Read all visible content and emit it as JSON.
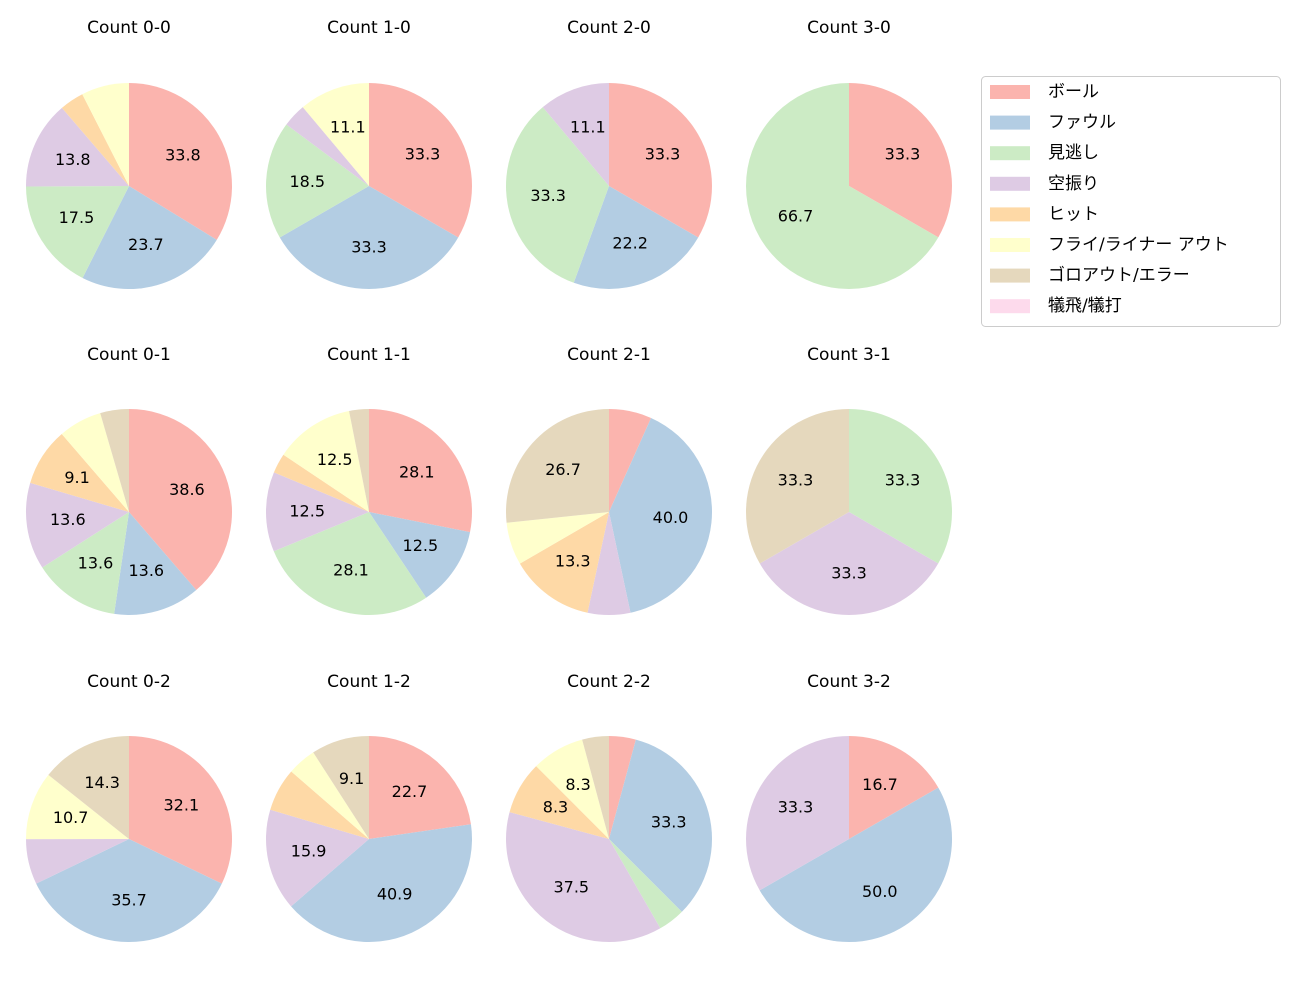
{
  "chart_data": [
    {
      "type": "pie",
      "title": "Count 0-0",
      "categories": [
        "ボール",
        "ファウル",
        "見逃し",
        "空振り",
        "ヒット",
        "フライ/ライナー アウト",
        "ゴロアウト/エラー",
        "犠飛/犠打"
      ],
      "colors": [
        "#fbb4ae",
        "#b3cde3",
        "#ccebc5",
        "#decbe4",
        "#fed9a6",
        "#ffffcc",
        "#e5d8bd",
        "#fddaec"
      ],
      "values": [
        33.8,
        23.7,
        17.5,
        13.8,
        3.8,
        7.5,
        0,
        0
      ],
      "value_labels": [
        "33.8",
        "23.7",
        "17.5",
        "13.8",
        null,
        null,
        null,
        null
      ]
    },
    {
      "type": "pie",
      "title": "Count 1-0",
      "categories": [
        "ボール",
        "ファウル",
        "見逃し",
        "空振り",
        "ヒット",
        "フライ/ライナー アウト",
        "ゴロアウト/エラー",
        "犠飛/犠打"
      ],
      "colors": [
        "#fbb4ae",
        "#b3cde3",
        "#ccebc5",
        "#decbe4",
        "#fed9a6",
        "#ffffcc",
        "#e5d8bd",
        "#fddaec"
      ],
      "values": [
        33.3,
        33.3,
        18.5,
        3.7,
        0,
        11.1,
        0,
        0
      ],
      "value_labels": [
        "33.3",
        "33.3",
        "18.5",
        null,
        null,
        "11.1",
        null,
        null
      ]
    },
    {
      "type": "pie",
      "title": "Count 2-0",
      "categories": [
        "ボール",
        "ファウル",
        "見逃し",
        "空振り",
        "ヒット",
        "フライ/ライナー アウト",
        "ゴロアウト/エラー",
        "犠飛/犠打"
      ],
      "colors": [
        "#fbb4ae",
        "#b3cde3",
        "#ccebc5",
        "#decbe4",
        "#fed9a6",
        "#ffffcc",
        "#e5d8bd",
        "#fddaec"
      ],
      "values": [
        33.3,
        22.2,
        33.3,
        11.1,
        0,
        0,
        0,
        0
      ],
      "value_labels": [
        "33.3",
        "22.2",
        "33.3",
        "11.1",
        null,
        null,
        null,
        null
      ]
    },
    {
      "type": "pie",
      "title": "Count 3-0",
      "categories": [
        "ボール",
        "ファウル",
        "見逃し",
        "空振り",
        "ヒット",
        "フライ/ライナー アウト",
        "ゴロアウト/エラー",
        "犠飛/犠打"
      ],
      "colors": [
        "#fbb4ae",
        "#b3cde3",
        "#ccebc5",
        "#decbe4",
        "#fed9a6",
        "#ffffcc",
        "#e5d8bd",
        "#fddaec"
      ],
      "values": [
        33.3,
        0,
        66.7,
        0,
        0,
        0,
        0,
        0
      ],
      "value_labels": [
        "33.3",
        null,
        "66.7",
        null,
        null,
        null,
        null,
        null
      ]
    },
    {
      "type": "pie",
      "title": "Count 0-1",
      "categories": [
        "ボール",
        "ファウル",
        "見逃し",
        "空振り",
        "ヒット",
        "フライ/ライナー アウト",
        "ゴロアウト/エラー",
        "犠飛/犠打"
      ],
      "colors": [
        "#fbb4ae",
        "#b3cde3",
        "#ccebc5",
        "#decbe4",
        "#fed9a6",
        "#ffffcc",
        "#e5d8bd",
        "#fddaec"
      ],
      "values": [
        38.6,
        13.6,
        13.6,
        13.6,
        9.1,
        6.8,
        4.5,
        0
      ],
      "value_labels": [
        "38.6",
        "13.6",
        "13.6",
        "13.6",
        "9.1",
        null,
        null,
        null
      ]
    },
    {
      "type": "pie",
      "title": "Count 1-1",
      "categories": [
        "ボール",
        "ファウル",
        "見逃し",
        "空振り",
        "ヒット",
        "フライ/ライナー アウト",
        "ゴロアウト/エラー",
        "犠飛/犠打"
      ],
      "colors": [
        "#fbb4ae",
        "#b3cde3",
        "#ccebc5",
        "#decbe4",
        "#fed9a6",
        "#ffffcc",
        "#e5d8bd",
        "#fddaec"
      ],
      "values": [
        28.1,
        12.5,
        28.1,
        12.5,
        3.1,
        12.5,
        3.1,
        0
      ],
      "value_labels": [
        "28.1",
        "12.5",
        "28.1",
        "12.5",
        null,
        "12.5",
        null,
        null
      ]
    },
    {
      "type": "pie",
      "title": "Count 2-1",
      "categories": [
        "ボール",
        "ファウル",
        "見逃し",
        "空振り",
        "ヒット",
        "フライ/ライナー アウト",
        "ゴロアウト/エラー",
        "犠飛/犠打"
      ],
      "colors": [
        "#fbb4ae",
        "#b3cde3",
        "#ccebc5",
        "#decbe4",
        "#fed9a6",
        "#ffffcc",
        "#e5d8bd",
        "#fddaec"
      ],
      "values": [
        6.7,
        40.0,
        0,
        6.7,
        13.3,
        6.7,
        26.7,
        0
      ],
      "value_labels": [
        null,
        "40.0",
        null,
        null,
        "13.3",
        null,
        "26.7",
        null
      ]
    },
    {
      "type": "pie",
      "title": "Count 3-1",
      "categories": [
        "ボール",
        "ファウル",
        "見逃し",
        "空振り",
        "ヒット",
        "フライ/ライナー アウト",
        "ゴロアウト/エラー",
        "犠飛/犠打"
      ],
      "colors": [
        "#fbb4ae",
        "#b3cde3",
        "#ccebc5",
        "#decbe4",
        "#fed9a6",
        "#ffffcc",
        "#e5d8bd",
        "#fddaec"
      ],
      "values": [
        0,
        0,
        33.3,
        33.3,
        0,
        0,
        33.3,
        0
      ],
      "value_labels": [
        null,
        null,
        "33.3",
        "33.3",
        null,
        null,
        "33.3",
        null
      ]
    },
    {
      "type": "pie",
      "title": "Count 0-2",
      "categories": [
        "ボール",
        "ファウル",
        "見逃し",
        "空振り",
        "ヒット",
        "フライ/ライナー アウト",
        "ゴロアウト/エラー",
        "犠飛/犠打"
      ],
      "colors": [
        "#fbb4ae",
        "#b3cde3",
        "#ccebc5",
        "#decbe4",
        "#fed9a6",
        "#ffffcc",
        "#e5d8bd",
        "#fddaec"
      ],
      "values": [
        32.1,
        35.7,
        0,
        7.1,
        0,
        10.7,
        14.3,
        0
      ],
      "value_labels": [
        "32.1",
        "35.7",
        null,
        null,
        null,
        "10.7",
        "14.3",
        null
      ]
    },
    {
      "type": "pie",
      "title": "Count 1-2",
      "categories": [
        "ボール",
        "ファウル",
        "見逃し",
        "空振り",
        "ヒット",
        "フライ/ライナー アウト",
        "ゴロアウト/エラー",
        "犠飛/犠打"
      ],
      "colors": [
        "#fbb4ae",
        "#b3cde3",
        "#ccebc5",
        "#decbe4",
        "#fed9a6",
        "#ffffcc",
        "#e5d8bd",
        "#fddaec"
      ],
      "values": [
        22.7,
        40.9,
        0,
        15.9,
        6.8,
        4.5,
        9.1,
        0
      ],
      "value_labels": [
        "22.7",
        "40.9",
        null,
        "15.9",
        null,
        null,
        "9.1",
        null
      ]
    },
    {
      "type": "pie",
      "title": "Count 2-2",
      "categories": [
        "ボール",
        "ファウル",
        "見逃し",
        "空振り",
        "ヒット",
        "フライ/ライナー アウト",
        "ゴロアウト/エラー",
        "犠飛/犠打"
      ],
      "colors": [
        "#fbb4ae",
        "#b3cde3",
        "#ccebc5",
        "#decbe4",
        "#fed9a6",
        "#ffffcc",
        "#e5d8bd",
        "#fddaec"
      ],
      "values": [
        4.2,
        33.3,
        4.2,
        37.5,
        8.3,
        8.3,
        4.2,
        0
      ],
      "value_labels": [
        null,
        "33.3",
        null,
        "37.5",
        "8.3",
        "8.3",
        null,
        null
      ]
    },
    {
      "type": "pie",
      "title": "Count 3-2",
      "categories": [
        "ボール",
        "ファウル",
        "見逃し",
        "空振り",
        "ヒット",
        "フライ/ライナー アウト",
        "ゴロアウト/エラー",
        "犠飛/犠打"
      ],
      "colors": [
        "#fbb4ae",
        "#b3cde3",
        "#ccebc5",
        "#decbe4",
        "#fed9a6",
        "#ffffcc",
        "#e5d8bd",
        "#fddaec"
      ],
      "values": [
        16.7,
        50.0,
        0,
        33.3,
        0,
        0,
        0,
        0
      ],
      "value_labels": [
        "16.7",
        "50.0",
        null,
        "33.3",
        null,
        null,
        null,
        null
      ]
    }
  ]
}
